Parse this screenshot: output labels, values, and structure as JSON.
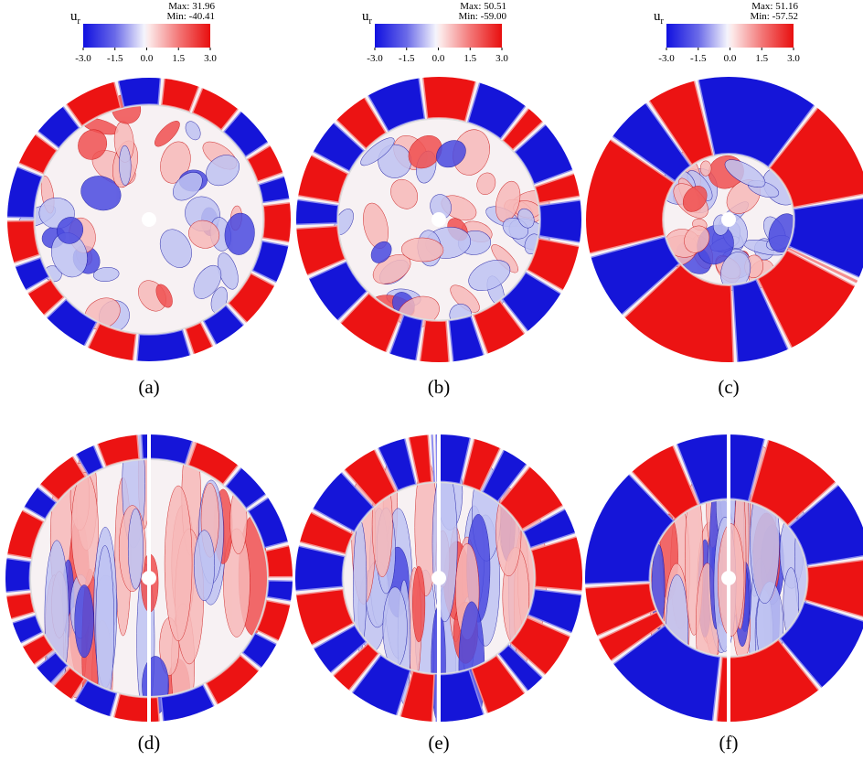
{
  "colorbars": [
    {
      "label": "u",
      "label_sub": "r",
      "max": "Max: 31.96",
      "min": "Min: -40.41",
      "ticks": [
        "-3.0",
        "-1.5",
        "0.0",
        "1.5",
        "3.0"
      ]
    },
    {
      "label": "u",
      "label_sub": "r",
      "max": "Max: 50.51",
      "min": "Min: -59.00",
      "ticks": [
        "-3.0",
        "-1.5",
        "0.0",
        "1.5",
        "3.0"
      ]
    },
    {
      "label": "u",
      "label_sub": "r",
      "max": "Max: 51.16",
      "min": "Min: -57.52",
      "ticks": [
        "-3.0",
        "-1.5",
        "0.0",
        "1.5",
        "3.0"
      ]
    }
  ],
  "panels": [
    "(a)",
    "(b)",
    "(c)",
    "(d)",
    "(e)",
    "(f)"
  ]
}
